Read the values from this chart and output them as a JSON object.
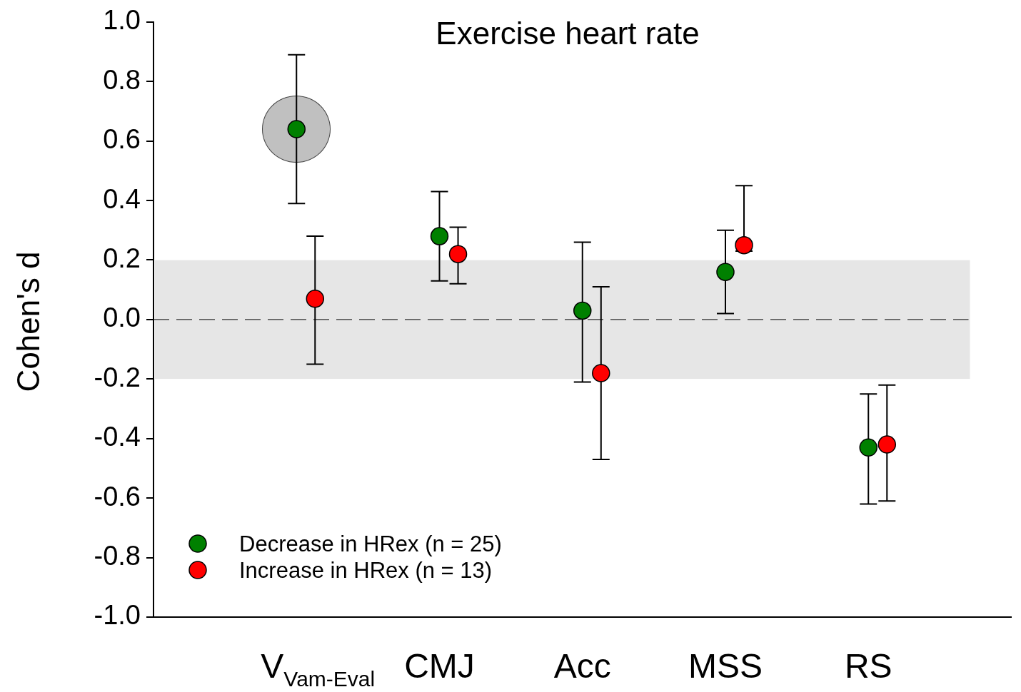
{
  "chart_data": {
    "type": "scatter",
    "title": "Exercise heart rate",
    "ylabel": "Cohen's d",
    "categories": [
      "V$_{Vam-Eval}$",
      "CMJ",
      "Acc",
      "MSS",
      "RS"
    ],
    "series": [
      {
        "name": "Decrease in HRex (n = 25)",
        "color": "#008000",
        "values": [
          0.64,
          0.28,
          0.03,
          0.16,
          -0.43
        ],
        "errors": [
          [
            0.39,
            0.89
          ],
          [
            0.13,
            0.43
          ],
          [
            -0.21,
            0.26
          ],
          [
            0.02,
            0.3
          ],
          [
            -0.62,
            -0.25
          ]
        ]
      },
      {
        "name": "Increase in HRex (n = 13)",
        "color": "#ff0000",
        "values": [
          0.07,
          0.22,
          -0.18,
          0.25,
          -0.42
        ],
        "errors": [
          [
            -0.15,
            0.28
          ],
          [
            0.12,
            0.31
          ],
          [
            -0.47,
            0.11
          ],
          [
            0.23,
            0.45
          ],
          [
            -0.61,
            -0.22
          ]
        ]
      }
    ],
    "ylim": [
      -1,
      1
    ],
    "yticks": [
      {
        "value": -1,
        "label": "-1.0"
      },
      {
        "value": -0.8,
        "label": "-0.8"
      },
      {
        "value": -0.6,
        "label": "-0.6"
      },
      {
        "value": -0.4,
        "label": "-0.4"
      },
      {
        "value": -0.2,
        "label": "-0.2"
      },
      {
        "value": 0,
        "label": "0.0"
      },
      {
        "value": 0.2,
        "label": "0.2"
      },
      {
        "value": 0.4,
        "label": "0.4"
      },
      {
        "value": 0.6,
        "label": "0.6"
      },
      {
        "value": 0.8,
        "label": "0.8"
      },
      {
        "value": 1,
        "label": "1.0"
      }
    ],
    "ref_lines": [
      {
        "axis": "y",
        "value": 0,
        "color": "#000000",
        "line_style": "dashed"
      }
    ],
    "bands": [
      {
        "axis": "y",
        "from": -0.2,
        "to": 0.2,
        "color": "#c8c8c8"
      }
    ],
    "grid": false,
    "legend": "bottom left",
    "marker": "circle"
  }
}
